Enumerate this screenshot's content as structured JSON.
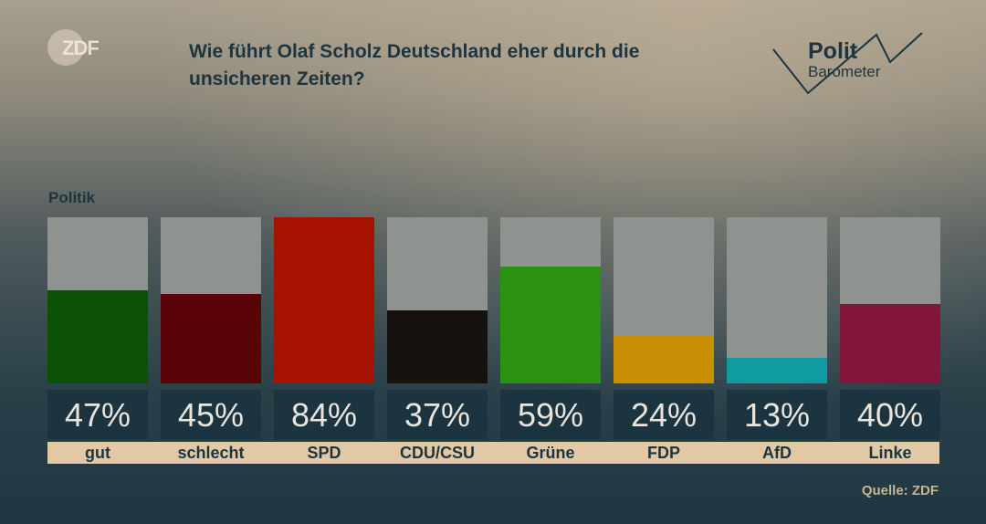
{
  "header": {
    "logo_text": "ZDF",
    "title_line1": "Wie führt Olaf Scholz Deutschland eher durch die",
    "title_line2": "unsicheren Zeiten?",
    "brand_line1": "Polit",
    "brand_line2": "Barometer"
  },
  "section_label": "Politik",
  "source": "Quelle: ZDF",
  "colors": {
    "gut": "#0b5206",
    "schlecht": "#590507",
    "SPD": "#a61200",
    "CDU/CSU": "#171210",
    "Grüne": "#2a9210",
    "FDP": "#c88f05",
    "AfD": "#0f9ba1",
    "Linke": "#84153a"
  },
  "chart_data": {
    "type": "bar",
    "title": "Wie führt Olaf Scholz Deutschland eher durch die unsicheren Zeiten?",
    "subtitle": "Politik",
    "categories": [
      "gut",
      "schlecht",
      "SPD",
      "CDU/CSU",
      "Grüne",
      "FDP",
      "AfD",
      "Linke"
    ],
    "values": [
      47,
      45,
      84,
      37,
      59,
      24,
      13,
      40
    ],
    "value_labels": [
      "47%",
      "45%",
      "84%",
      "37%",
      "59%",
      "24%",
      "13%",
      "40%"
    ],
    "ylim": [
      0,
      84
    ],
    "xlabel": "",
    "ylabel": ""
  }
}
